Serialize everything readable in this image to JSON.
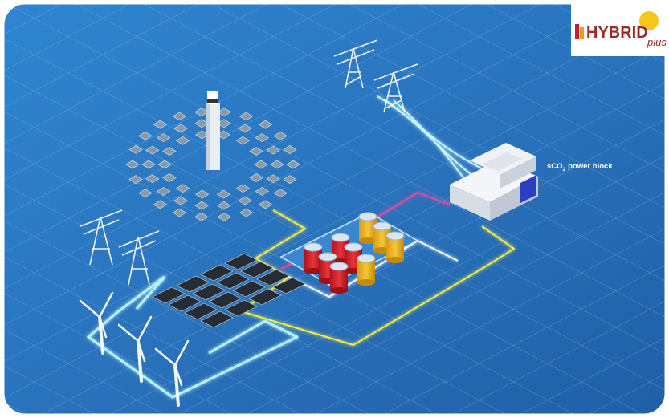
{
  "logo": {
    "name": "HYBRID",
    "suffix": "plus"
  },
  "labels": {
    "power_block": {
      "prefix": "sCO",
      "subscript": "2",
      "suffix": "power block"
    }
  }
}
